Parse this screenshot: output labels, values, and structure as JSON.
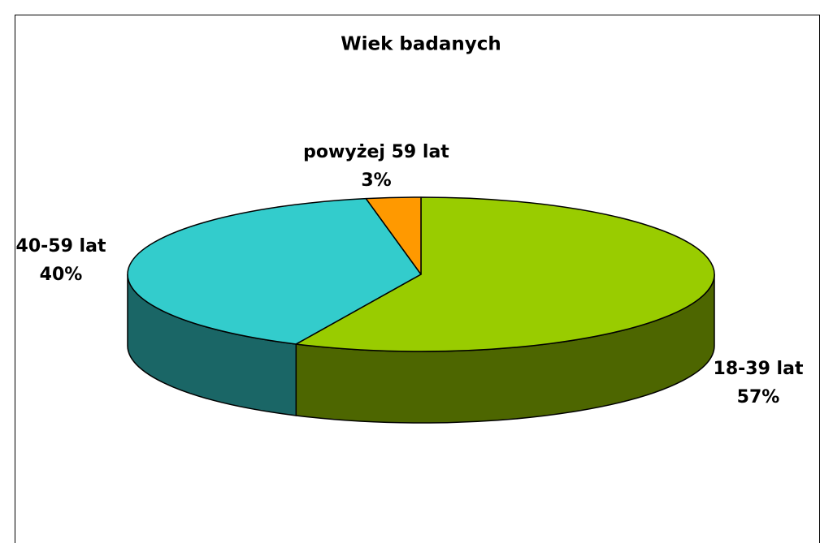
{
  "chart_data": {
    "type": "pie3d",
    "title": "Wiek badanych",
    "categories": [
      "18-39 lat",
      "40-59 lat",
      "powyżej 59 lat"
    ],
    "values": [
      57,
      40,
      3
    ],
    "value_labels": [
      "57%",
      "40%",
      "3%"
    ],
    "colors": [
      "#99cc00",
      "#33cccc",
      "#ff9900"
    ]
  }
}
